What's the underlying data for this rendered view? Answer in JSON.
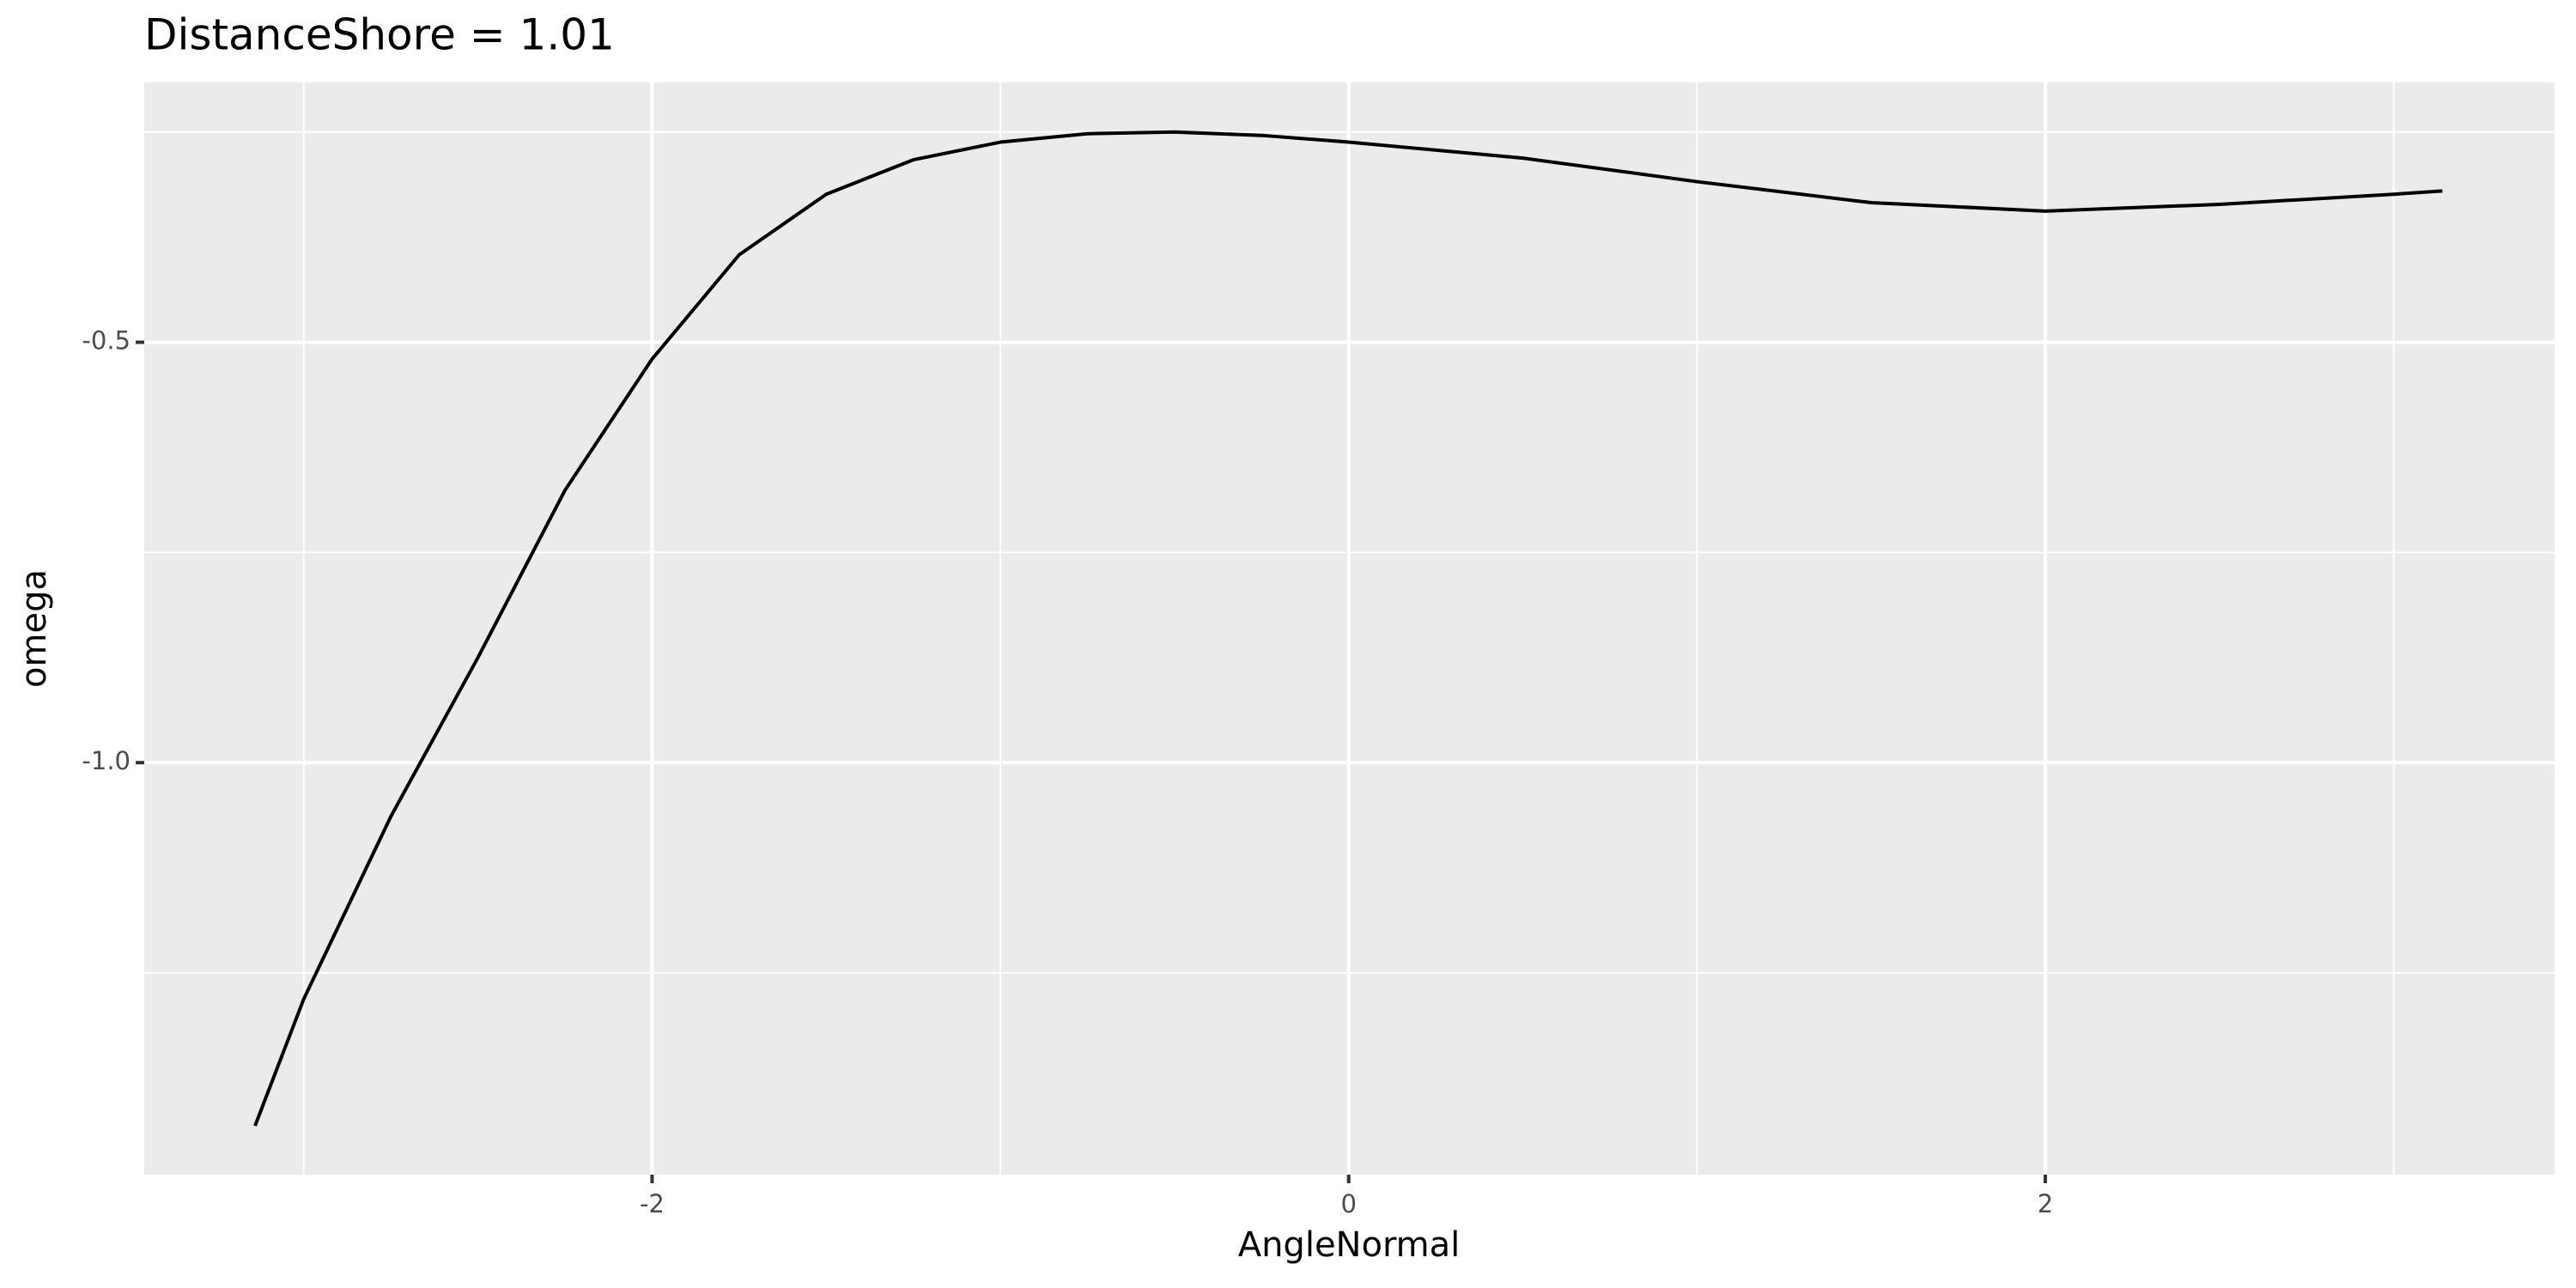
{
  "chart_data": {
    "type": "line",
    "title": "DistanceShore = 1.01",
    "x_label": "AngleNormal",
    "y_label": "omega",
    "x": [
      -3.14,
      -3,
      -2.75,
      -2.5,
      -2.25,
      -2,
      -1.75,
      -1.5,
      -1.25,
      -1,
      -0.75,
      -0.5,
      -0.25,
      0,
      0.5,
      1,
      1.5,
      2,
      2.5,
      3,
      3.14
    ],
    "series": [
      {
        "name": "omega",
        "color": "#000000",
        "values": [
          -1.432,
          -1.281,
          -1.064,
          -0.875,
          -0.676,
          -0.52,
          -0.396,
          -0.324,
          -0.283,
          -0.262,
          -0.252,
          -0.25,
          -0.254,
          -0.262,
          -0.281,
          -0.309,
          -0.334,
          -0.344,
          -0.336,
          -0.324,
          -0.32
        ]
      }
    ],
    "xlim": [
      -3.458,
      3.462
    ],
    "ylim": [
      -1.49,
      -0.191
    ],
    "xticks": [
      -2,
      0,
      2
    ],
    "yticks": [
      {
        "value": -1.0,
        "label": "-1.0"
      },
      -0.5
    ],
    "x_minor_grid": [
      -3,
      -1,
      1,
      3
    ],
    "y_minor_grid": [
      -1.25,
      -0.75,
      -0.25
    ],
    "grid": true,
    "panel_color": "#ebebeb"
  }
}
